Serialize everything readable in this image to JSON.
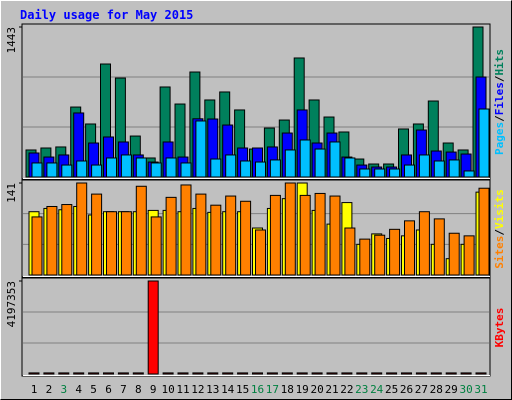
{
  "chart_data": [
    {
      "type": "bar",
      "title": "Daily usage for May 2015",
      "ylim": [
        0,
        1443
      ],
      "yticks": [
        1443
      ],
      "legend_separator": "/",
      "series": [
        {
          "name": "Hits",
          "color": "#00805c",
          "values": [
            260,
            279,
            289,
            673,
            510,
            1087,
            952,
            394,
            183,
            866,
            702,
            1010,
            741,
            818,
            645,
            269,
            471,
            548,
            1145,
            741,
            577,
            433,
            173,
            125,
            125,
            462,
            510,
            731,
            327,
            260,
            1443
          ]
        },
        {
          "name": "Files",
          "color": "#0000ff",
          "values": [
            231,
            192,
            212,
            616,
            327,
            385,
            337,
            212,
            144,
            337,
            192,
            560,
            558,
            500,
            279,
            279,
            289,
            423,
            645,
            327,
            423,
            192,
            115,
            96,
            96,
            212,
            452,
            250,
            240,
            221,
            962
          ]
        },
        {
          "name": "Pages",
          "color": "#00c0ff",
          "values": [
            135,
            135,
            115,
            154,
            115,
            183,
            212,
            183,
            135,
            183,
            135,
            539,
            173,
            212,
            154,
            144,
            164,
            260,
            356,
            269,
            337,
            183,
            77,
            77,
            77,
            115,
            212,
            154,
            164,
            58,
            654
          ]
        }
      ]
    },
    {
      "type": "bar",
      "ylim": [
        0,
        141
      ],
      "yticks": [
        141
      ],
      "legend_separator": "/",
      "series": [
        {
          "name": "Visits",
          "color": "#ffff00",
          "values": [
            97,
            102,
            100,
            105,
            92,
            97,
            97,
            97,
            99,
            99,
            97,
            102,
            96,
            97,
            97,
            72,
            102,
            117,
            141,
            99,
            78,
            111,
            47,
            63,
            56,
            60,
            69,
            47,
            25,
            47,
            127
          ]
        },
        {
          "name": "Sites",
          "color": "#ff8000",
          "values": [
            89,
            105,
            108,
            141,
            124,
            97,
            97,
            136,
            89,
            119,
            138,
            124,
            107,
            121,
            113,
            69,
            122,
            141,
            122,
            125,
            121,
            72,
            55,
            61,
            70,
            83,
            97,
            86,
            64,
            60,
            133
          ]
        }
      ]
    },
    {
      "type": "bar",
      "ylim": [
        0,
        4197353
      ],
      "yticks": [
        4197353
      ],
      "categories": [
        "1",
        "2",
        "3",
        "4",
        "5",
        "6",
        "7",
        "8",
        "9",
        "10",
        "11",
        "12",
        "13",
        "14",
        "15",
        "16",
        "17",
        "18",
        "19",
        "20",
        "21",
        "22",
        "23",
        "24",
        "25",
        "26",
        "27",
        "28",
        "29",
        "30",
        "31"
      ],
      "category_colors": [
        "#000000",
        "#000000",
        "#008040",
        "#000000",
        "#000000",
        "#000000",
        "#000000",
        "#000000",
        "#000000",
        "#000000",
        "#000000",
        "#000000",
        "#000000",
        "#000000",
        "#000000",
        "#008040",
        "#008040",
        "#000000",
        "#000000",
        "#000000",
        "#000000",
        "#000000",
        "#008040",
        "#008040",
        "#000000",
        "#000000",
        "#000000",
        "#000000",
        "#000000",
        "#008040",
        "#008040"
      ],
      "series": [
        {
          "name": "KBytes",
          "color": "#ff0000",
          "values": [
            50000,
            50000,
            50000,
            50000,
            50000,
            50000,
            50000,
            50000,
            4197353,
            50000,
            50000,
            50000,
            50000,
            50000,
            50000,
            50000,
            50000,
            50000,
            50000,
            50000,
            50000,
            50000,
            50000,
            50000,
            50000,
            50000,
            50000,
            50000,
            50000,
            50000,
            50000
          ]
        }
      ]
    }
  ]
}
